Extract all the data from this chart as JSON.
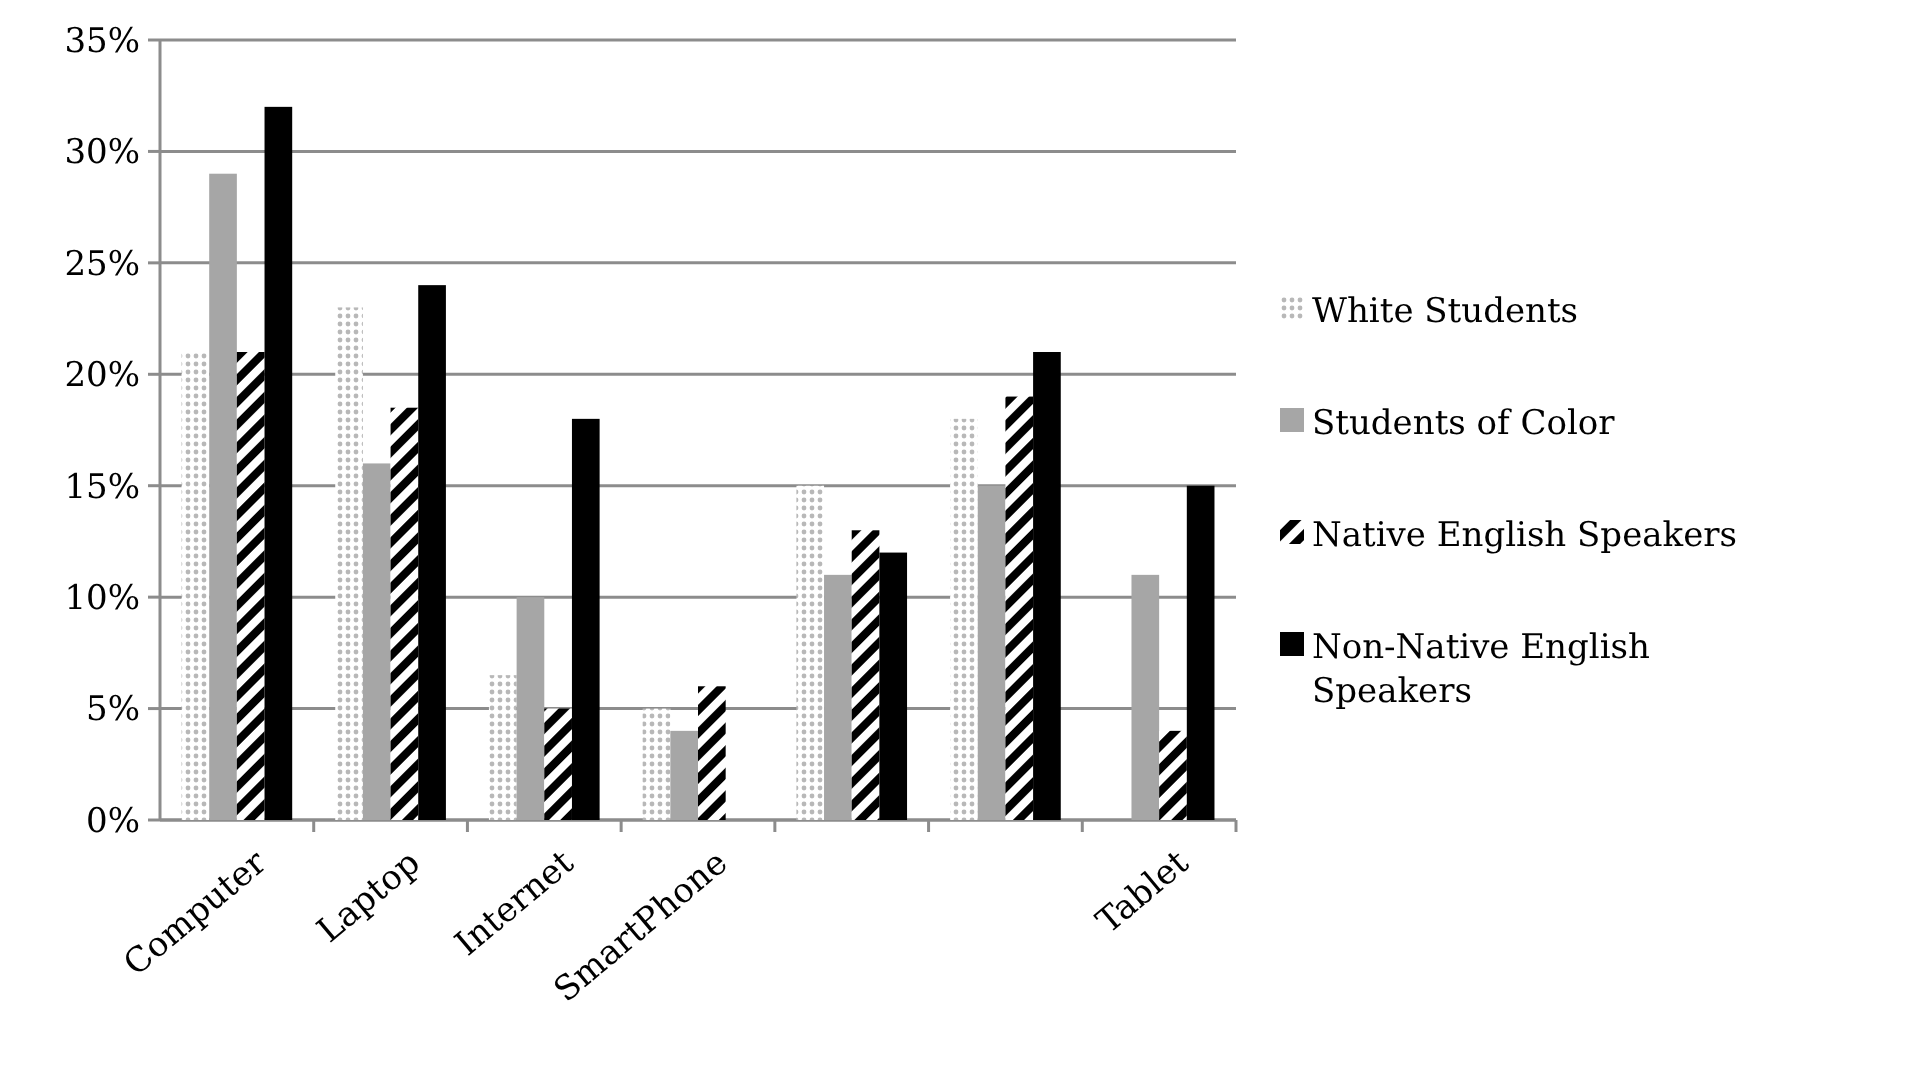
{
  "chart_data": {
    "type": "bar",
    "categories": [
      "Computer",
      "Laptop",
      "Internet",
      "SmartPhone",
      null,
      null,
      "Tablet"
    ],
    "series": [
      {
        "name": "White Students",
        "color": "#b8b8b8",
        "values": [
          21,
          23,
          6.5,
          5,
          15,
          18,
          0
        ]
      },
      {
        "name": "Students of Color",
        "color": "#a6a6a6",
        "values": [
          29,
          16,
          10,
          4,
          11,
          15,
          11
        ]
      },
      {
        "name": "Native English Speakers",
        "color": "#000000",
        "values": [
          21,
          18.5,
          5,
          6,
          13,
          19,
          4
        ]
      },
      {
        "name": "Non-Native English Speakers",
        "color": "#000000",
        "values": [
          32,
          24,
          18,
          0,
          12,
          21,
          15
        ]
      }
    ],
    "ylim": [
      0,
      35
    ],
    "yticks": [
      {
        "value": 0,
        "label": "0%"
      },
      {
        "value": 5,
        "label": "5%"
      },
      {
        "value": 10,
        "label": "10%"
      },
      {
        "value": 15,
        "label": "15%"
      },
      {
        "value": 20,
        "label": "20%"
      },
      {
        "value": 25,
        "label": "25%"
      },
      {
        "value": 30,
        "label": "30%"
      },
      {
        "value": 35,
        "label": "35%"
      }
    ],
    "grid": "y",
    "legend": "right"
  }
}
